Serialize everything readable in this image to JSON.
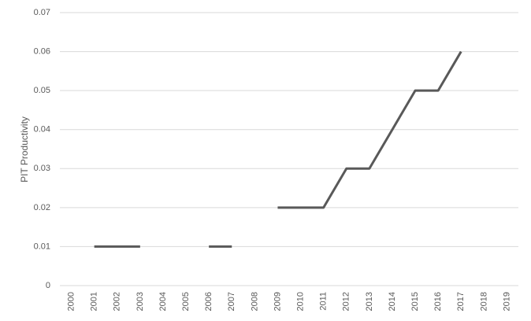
{
  "chart_data": {
    "type": "line",
    "y_label": "PIT Productivity",
    "categories": [
      "2000",
      "2001",
      "2002",
      "2003",
      "2004",
      "2005",
      "2006",
      "2007",
      "2008",
      "2009",
      "2010",
      "2011",
      "2012",
      "2013",
      "2014",
      "2015",
      "2016",
      "2017",
      "2018",
      "2019"
    ],
    "values": [
      null,
      0.01,
      0.01,
      0.01,
      null,
      null,
      0.01,
      0.01,
      null,
      0.02,
      0.02,
      0.02,
      0.03,
      0.03,
      0.04,
      0.05,
      0.05,
      0.06,
      null,
      null
    ],
    "color": "#595959",
    "ylim": [
      0,
      0.07
    ],
    "yticks": [
      0,
      0.01,
      0.02,
      0.03,
      0.04,
      0.05,
      0.06,
      0.07
    ],
    "grid": true
  }
}
